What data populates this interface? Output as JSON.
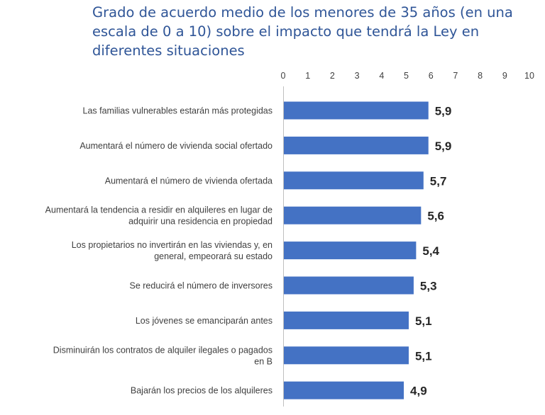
{
  "chart_data": {
    "type": "bar",
    "orientation": "horizontal",
    "title": "Grado de acuerdo medio de los menores de 35 años (en una escala de 0 a 10) sobre el impacto que tendrá la Ley en diferentes situaciones",
    "xlim": [
      0,
      10
    ],
    "ticks": [
      "0",
      "1",
      "2",
      "3",
      "4",
      "5",
      "6",
      "7",
      "8",
      "9",
      "10"
    ],
    "tick_position": "top",
    "grid": false,
    "bar_color": "#4472c4",
    "categories": [
      [
        "Las familias vulnerables estarán más protegidas"
      ],
      [
        "Aumentará el número de vivienda social ofertado"
      ],
      [
        "Aumentará el número de vivienda ofertada"
      ],
      [
        "Aumentará la tendencia a residir en alquileres en lugar de",
        "adquirir una residencia en propiedad"
      ],
      [
        "Los propietarios no invertirán en las viviendas y, en",
        "general, empeorará su estado"
      ],
      [
        "Se reducirá el número de inversores"
      ],
      [
        "Los jóvenes se emanciparán antes"
      ],
      [
        "Disminuirán los contratos de alquiler ilegales o pagados",
        "en B"
      ],
      [
        "Bajarán los precios de los alquileres"
      ]
    ],
    "values": [
      5.9,
      5.9,
      5.7,
      5.6,
      5.4,
      5.3,
      5.1,
      5.1,
      4.9
    ],
    "value_labels": [
      "5,9",
      "5,9",
      "5,7",
      "5,6",
      "5,4",
      "5,3",
      "5,1",
      "5,1",
      "4,9"
    ]
  }
}
